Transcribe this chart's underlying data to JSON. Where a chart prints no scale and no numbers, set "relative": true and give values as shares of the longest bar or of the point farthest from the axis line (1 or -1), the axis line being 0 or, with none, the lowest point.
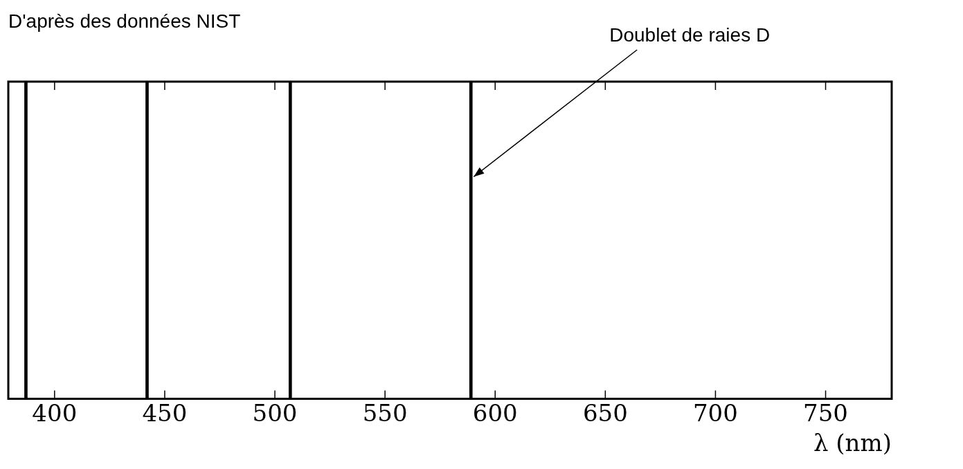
{
  "chart_data": {
    "type": "bar",
    "relative": true,
    "x": [
      387,
      442,
      507,
      589
    ],
    "values": [
      1,
      1,
      1,
      1
    ],
    "color": "#000000",
    "xlim": [
      379,
      780
    ],
    "xticks": [
      400,
      450,
      500,
      550,
      600,
      650,
      700,
      750
    ],
    "xlabel": "λ (nm)",
    "grid": false,
    "legend": false,
    "annotations": [
      "D'après des données NIST",
      {
        "text": "Doublet de raies D",
        "x": 589,
        "y": 0.7
      }
    ]
  }
}
